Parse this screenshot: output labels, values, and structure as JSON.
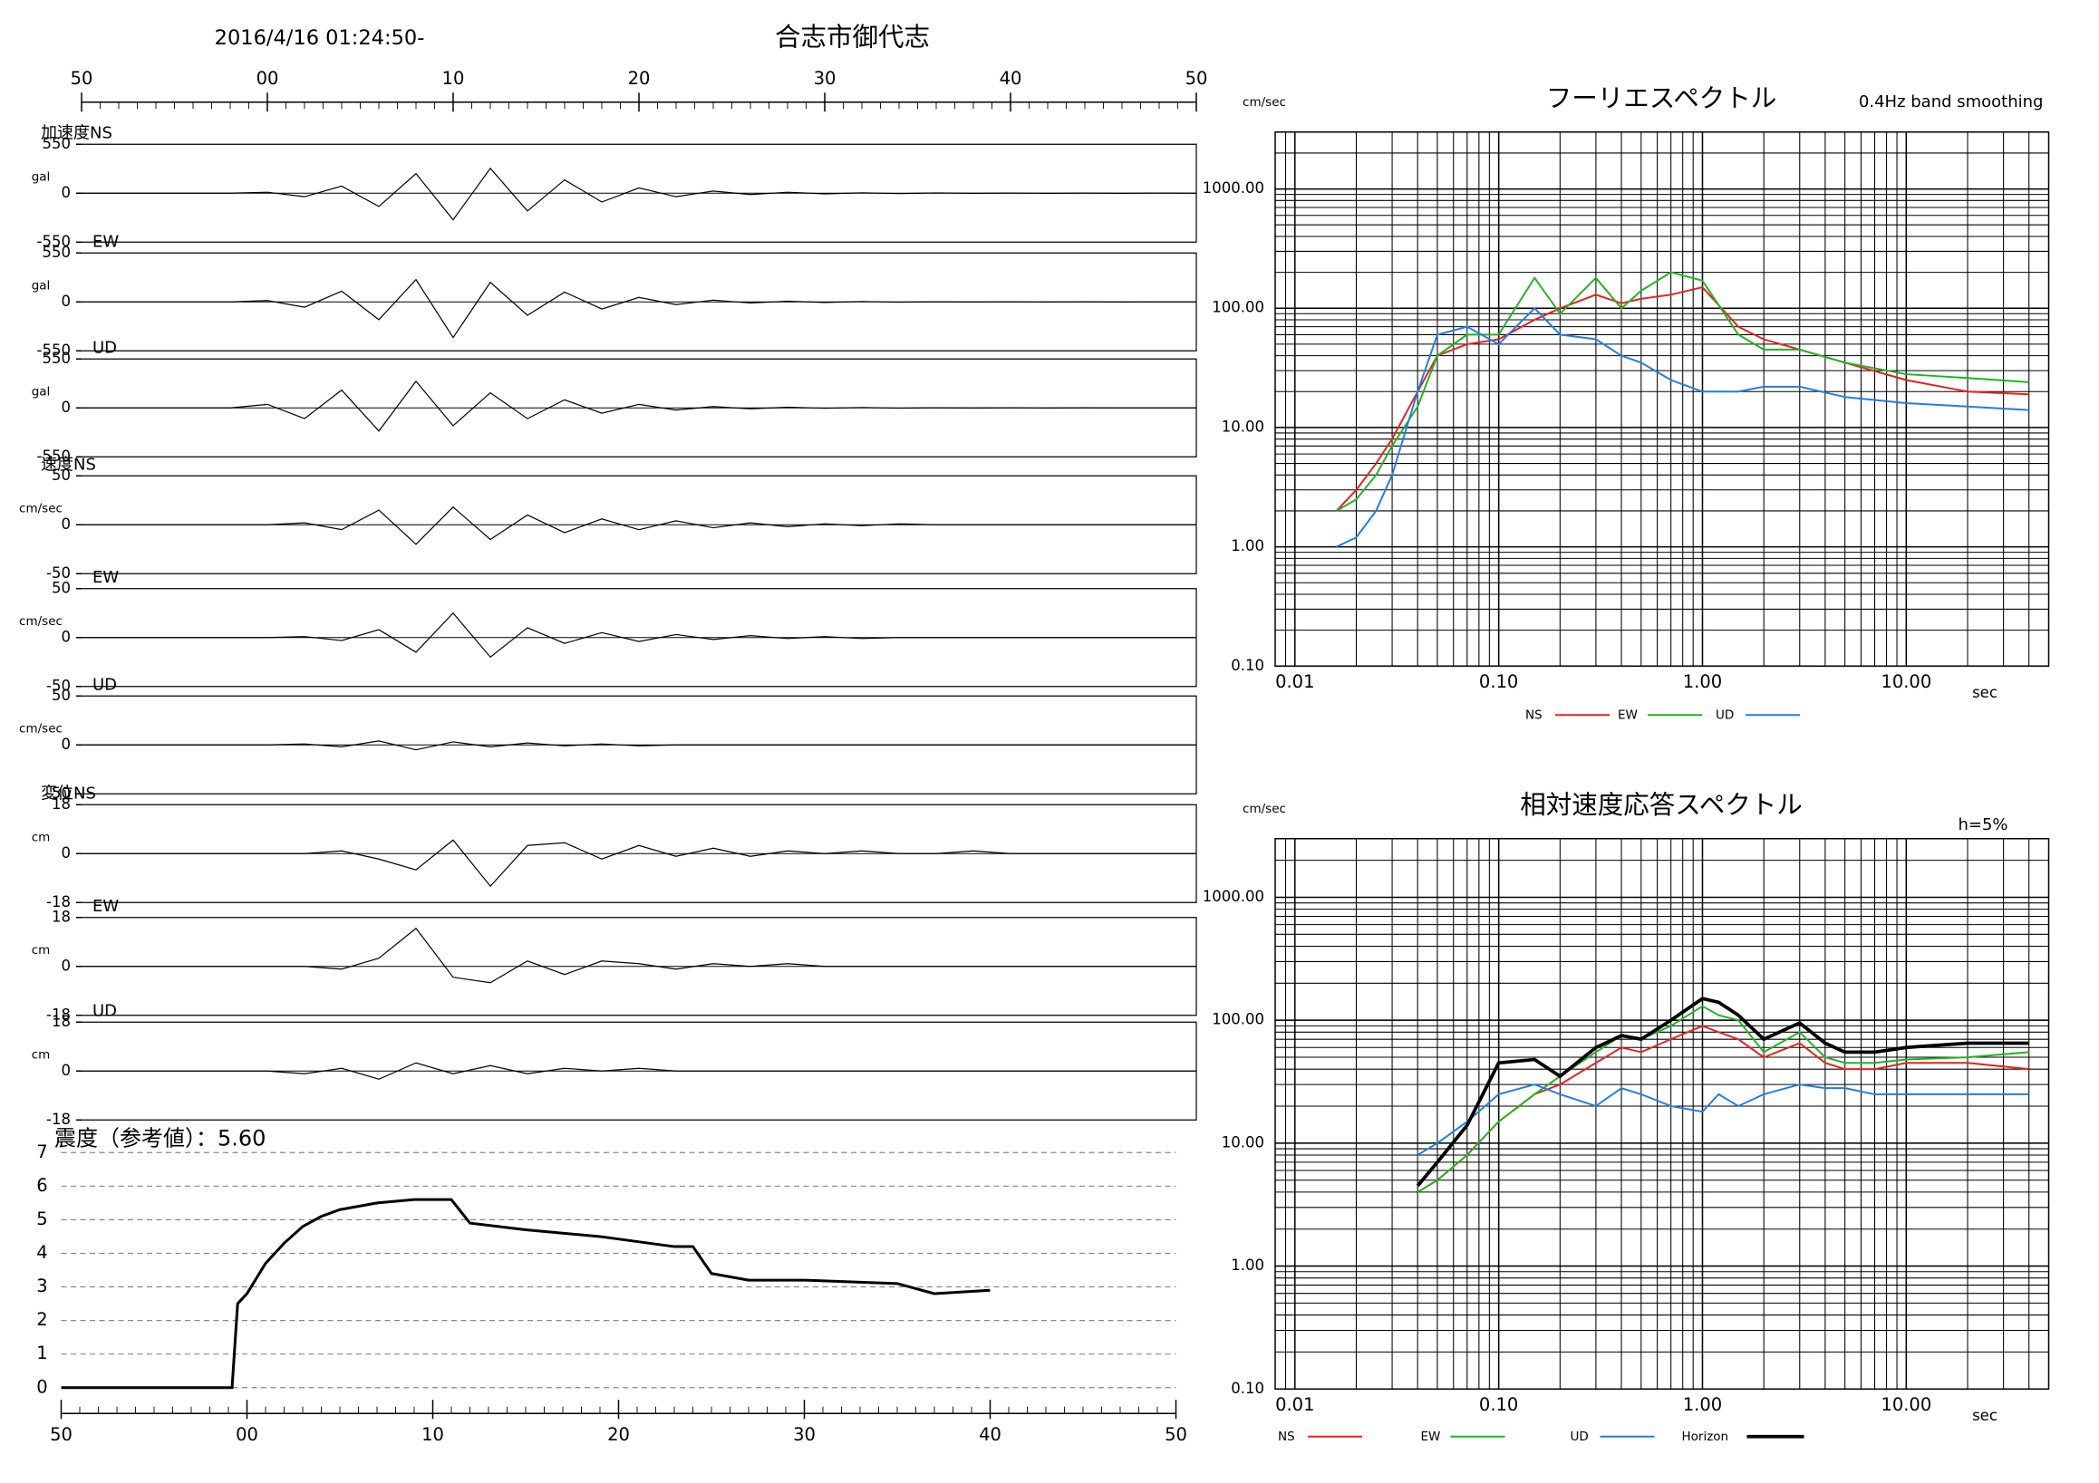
{
  "station": "合志市御代志",
  "start_time": "2016/4/16 01:24:50-",
  "chart_data": [
    {
      "type": "line",
      "label": "加速度NS",
      "unit": "gal",
      "xlim": [
        0,
        60
      ],
      "ylim": [
        -550,
        550
      ],
      "yticks": [
        -550,
        0,
        550
      ],
      "xticks": [
        {
          "value": 0,
          "label": "50"
        },
        {
          "value": 10,
          "label": "00"
        },
        {
          "value": 20,
          "label": "10"
        },
        {
          "value": 30,
          "label": "20"
        },
        {
          "value": 40,
          "label": "30"
        },
        {
          "value": 50,
          "label": "40"
        },
        {
          "value": 60,
          "label": "50"
        }
      ],
      "x": [
        0,
        2,
        4,
        6,
        8,
        10,
        12,
        14,
        16,
        18,
        20,
        22,
        24,
        26,
        28,
        30,
        32,
        34,
        36,
        38,
        40,
        42,
        44,
        46,
        48,
        50,
        52,
        54,
        56,
        58,
        60
      ],
      "values": [
        0,
        0,
        0,
        0,
        0,
        10,
        -40,
        80,
        -150,
        220,
        -300,
        280,
        -200,
        150,
        -100,
        60,
        -40,
        25,
        -15,
        10,
        -8,
        5,
        -4,
        3,
        -2,
        2,
        -1,
        1,
        -1,
        1,
        0
      ]
    },
    {
      "type": "line",
      "label": "EW",
      "unit": "gal",
      "xlim": [
        0,
        60
      ],
      "ylim": [
        -550,
        550
      ],
      "yticks": [
        -550,
        0,
        550
      ],
      "x": [
        0,
        2,
        4,
        6,
        8,
        10,
        12,
        14,
        16,
        18,
        20,
        22,
        24,
        26,
        28,
        30,
        32,
        34,
        36,
        38,
        40,
        42,
        44,
        46,
        48,
        50,
        52,
        54,
        56,
        58,
        60
      ],
      "values": [
        0,
        0,
        0,
        0,
        0,
        15,
        -60,
        120,
        -200,
        250,
        -400,
        220,
        -150,
        110,
        -80,
        50,
        -30,
        20,
        -12,
        8,
        -6,
        4,
        -3,
        2,
        -2,
        1,
        -1,
        1,
        -1,
        0,
        0
      ]
    },
    {
      "type": "line",
      "label": "UD",
      "unit": "gal",
      "xlim": [
        0,
        60
      ],
      "ylim": [
        -550,
        550
      ],
      "yticks": [
        -550,
        0,
        550
      ],
      "x": [
        0,
        2,
        4,
        6,
        8,
        10,
        12,
        14,
        16,
        18,
        20,
        22,
        24,
        26,
        28,
        30,
        32,
        34,
        36,
        38,
        40,
        42,
        44,
        46,
        48,
        50,
        52,
        54,
        56,
        58,
        60
      ],
      "values": [
        0,
        0,
        0,
        0,
        0,
        40,
        -120,
        200,
        -260,
        300,
        -200,
        170,
        -120,
        90,
        -60,
        40,
        -25,
        15,
        -10,
        8,
        -5,
        4,
        -3,
        2,
        -1,
        1,
        -1,
        1,
        0,
        0,
        0
      ]
    },
    {
      "type": "line",
      "label": "速度NS",
      "unit": "cm/sec",
      "xlim": [
        0,
        60
      ],
      "ylim": [
        -50,
        50
      ],
      "yticks": [
        -50,
        0,
        50
      ],
      "x": [
        0,
        2,
        4,
        6,
        8,
        10,
        12,
        14,
        16,
        18,
        20,
        22,
        24,
        26,
        28,
        30,
        32,
        34,
        36,
        38,
        40,
        42,
        44,
        46,
        48,
        50,
        52,
        54,
        56,
        58,
        60
      ],
      "values": [
        0,
        0,
        0,
        0,
        0,
        0,
        2,
        -5,
        15,
        -20,
        18,
        -15,
        10,
        -8,
        6,
        -5,
        4,
        -3,
        2,
        -2,
        1,
        -1,
        1,
        0,
        0,
        0,
        0,
        0,
        0,
        0,
        0
      ]
    },
    {
      "type": "line",
      "label": "EW",
      "unit": "cm/sec",
      "xlim": [
        0,
        60
      ],
      "ylim": [
        -50,
        50
      ],
      "yticks": [
        -50,
        0,
        50
      ],
      "x": [
        0,
        2,
        4,
        6,
        8,
        10,
        12,
        14,
        16,
        18,
        20,
        22,
        24,
        26,
        28,
        30,
        32,
        34,
        36,
        38,
        40,
        42,
        44,
        46,
        48,
        50,
        52,
        54,
        56,
        58,
        60
      ],
      "values": [
        0,
        0,
        0,
        0,
        0,
        0,
        1,
        -3,
        8,
        -15,
        25,
        -20,
        10,
        -6,
        5,
        -4,
        3,
        -2,
        2,
        -1,
        1,
        -1,
        0,
        0,
        0,
        0,
        0,
        0,
        0,
        0,
        0
      ]
    },
    {
      "type": "line",
      "label": "UD",
      "unit": "cm/sec",
      "xlim": [
        0,
        60
      ],
      "ylim": [
        -50,
        50
      ],
      "yticks": [
        -50,
        0,
        50
      ],
      "x": [
        0,
        2,
        4,
        6,
        8,
        10,
        12,
        14,
        16,
        18,
        20,
        22,
        24,
        26,
        28,
        30,
        32,
        34,
        36,
        38,
        40,
        42,
        44,
        46,
        48,
        50,
        52,
        54,
        56,
        58,
        60
      ],
      "values": [
        0,
        0,
        0,
        0,
        0,
        0,
        1,
        -2,
        4,
        -5,
        3,
        -2,
        2,
        -1,
        1,
        -1,
        0,
        0,
        0,
        0,
        0,
        0,
        0,
        0,
        0,
        0,
        0,
        0,
        0,
        0,
        0
      ]
    },
    {
      "type": "line",
      "label": "変位NS",
      "unit": "cm",
      "xlim": [
        0,
        60
      ],
      "ylim": [
        -18,
        18
      ],
      "yticks": [
        -18,
        0,
        18
      ],
      "x": [
        0,
        2,
        4,
        6,
        8,
        10,
        12,
        14,
        16,
        18,
        20,
        22,
        24,
        26,
        28,
        30,
        32,
        34,
        36,
        38,
        40,
        42,
        44,
        46,
        48,
        50,
        52,
        54,
        56,
        58,
        60
      ],
      "values": [
        0,
        0,
        0,
        0,
        0,
        0,
        0,
        1,
        -2,
        -6,
        5,
        -12,
        3,
        4,
        -2,
        3,
        -1,
        2,
        -1,
        1,
        0,
        1,
        0,
        0,
        1,
        0,
        0,
        0,
        0,
        0,
        0
      ]
    },
    {
      "type": "line",
      "label": "EW",
      "unit": "cm",
      "xlim": [
        0,
        60
      ],
      "ylim": [
        -18,
        18
      ],
      "yticks": [
        -18,
        0,
        18
      ],
      "x": [
        0,
        2,
        4,
        6,
        8,
        10,
        12,
        14,
        16,
        18,
        20,
        22,
        24,
        26,
        28,
        30,
        32,
        34,
        36,
        38,
        40,
        42,
        44,
        46,
        48,
        50,
        52,
        54,
        56,
        58,
        60
      ],
      "values": [
        0,
        0,
        0,
        0,
        0,
        0,
        0,
        -1,
        3,
        14,
        -4,
        -6,
        2,
        -3,
        2,
        1,
        -1,
        1,
        0,
        1,
        0,
        0,
        0,
        0,
        0,
        0,
        0,
        0,
        0,
        0,
        0
      ]
    },
    {
      "type": "line",
      "label": "UD",
      "unit": "cm",
      "xlim": [
        0,
        60
      ],
      "ylim": [
        -18,
        18
      ],
      "yticks": [
        -18,
        0,
        18
      ],
      "x": [
        0,
        2,
        4,
        6,
        8,
        10,
        12,
        14,
        16,
        18,
        20,
        22,
        24,
        26,
        28,
        30,
        32,
        34,
        36,
        38,
        40,
        42,
        44,
        46,
        48,
        50,
        52,
        54,
        56,
        58,
        60
      ],
      "values": [
        0,
        0,
        0,
        0,
        0,
        0,
        -1,
        1,
        -3,
        3,
        -1,
        2,
        -1,
        1,
        0,
        1,
        0,
        0,
        0,
        0,
        0,
        0,
        0,
        0,
        0,
        0,
        0,
        0,
        0,
        0,
        0
      ]
    },
    {
      "type": "line",
      "title": "震度（参考値）：5.60",
      "xlim": [
        0,
        60
      ],
      "ylim": [
        0,
        7
      ],
      "yticks": [
        0,
        1,
        2,
        3,
        4,
        5,
        6,
        7
      ],
      "grid": true,
      "xticks": [
        {
          "value": 0,
          "label": "50"
        },
        {
          "value": 10,
          "label": "00"
        },
        {
          "value": 20,
          "label": "10"
        },
        {
          "value": 30,
          "label": "20"
        },
        {
          "value": 40,
          "label": "30"
        },
        {
          "value": 50,
          "label": "40"
        },
        {
          "value": 60,
          "label": "50"
        }
      ],
      "x": [
        0,
        9.2,
        9.5,
        10,
        11,
        12,
        13,
        14,
        15,
        17,
        19,
        21,
        22,
        25,
        29,
        33,
        34,
        35,
        37,
        40,
        45,
        47,
        50
      ],
      "values": [
        0,
        0,
        2.5,
        2.8,
        3.7,
        4.3,
        4.8,
        5.1,
        5.3,
        5.5,
        5.6,
        5.6,
        4.9,
        4.7,
        4.5,
        4.2,
        4.2,
        3.4,
        3.2,
        3.2,
        3.1,
        2.8,
        2.9
      ]
    },
    {
      "type": "line",
      "title": "フーリエスペクトル",
      "subtitle": "0.4Hz band smoothing",
      "y_label": "cm/sec",
      "x_label": "sec",
      "log_x": true,
      "log_y": true,
      "grid": true,
      "xlim": [
        0.008,
        50
      ],
      "ylim": [
        0.1,
        3000
      ],
      "xticks": [
        {
          "value": 0.01,
          "label": "0.01"
        },
        {
          "value": 0.1,
          "label": "0.10"
        },
        {
          "value": 1,
          "label": "1.00"
        },
        {
          "value": 10,
          "label": "10.00"
        }
      ],
      "yticks": [
        {
          "value": 0.1,
          "label": "0.10"
        },
        {
          "value": 1,
          "label": "1.00"
        },
        {
          "value": 10,
          "label": "10.00"
        },
        {
          "value": 100,
          "label": "100.00"
        },
        {
          "value": 1000,
          "label": "1000.00"
        }
      ],
      "x": [
        0.016,
        0.02,
        0.025,
        0.03,
        0.04,
        0.05,
        0.07,
        0.1,
        0.15,
        0.2,
        0.3,
        0.4,
        0.5,
        0.7,
        1,
        1.5,
        2,
        3,
        5,
        10,
        20,
        40
      ],
      "series": [
        {
          "name": "NS",
          "color": "#e8201e",
          "values": [
            2,
            3,
            5,
            8,
            20,
            40,
            50,
            55,
            80,
            100,
            130,
            110,
            120,
            130,
            150,
            70,
            55,
            45,
            35,
            25,
            20,
            19
          ]
        },
        {
          "name": "EW",
          "color": "#1fb41f",
          "values": [
            2,
            2.5,
            4,
            7,
            15,
            40,
            60,
            60,
            180,
            90,
            180,
            100,
            140,
            200,
            170,
            60,
            45,
            45,
            35,
            28,
            26,
            24
          ]
        },
        {
          "name": "UD",
          "color": "#1e7ee8",
          "values": [
            1,
            1.2,
            2,
            4,
            20,
            60,
            70,
            50,
            100,
            60,
            55,
            40,
            35,
            25,
            20,
            20,
            22,
            22,
            18,
            16,
            15,
            14
          ]
        }
      ]
    },
    {
      "type": "line",
      "title": "相対速度応答スペクトル",
      "annotation": "h=5%",
      "y_label": "cm/sec",
      "x_label": "sec",
      "log_x": true,
      "log_y": true,
      "grid": true,
      "xlim": [
        0.008,
        50
      ],
      "ylim": [
        0.1,
        3000
      ],
      "xticks": [
        {
          "value": 0.01,
          "label": "0.01"
        },
        {
          "value": 0.1,
          "label": "0.10"
        },
        {
          "value": 1,
          "label": "1.00"
        },
        {
          "value": 10,
          "label": "10.00"
        }
      ],
      "yticks": [
        {
          "value": 0.1,
          "label": "0.10"
        },
        {
          "value": 1,
          "label": "1.00"
        },
        {
          "value": 10,
          "label": "10.00"
        },
        {
          "value": 100,
          "label": "100.00"
        },
        {
          "value": 1000,
          "label": "1000.00"
        }
      ],
      "x": [
        0.04,
        0.05,
        0.07,
        0.1,
        0.15,
        0.2,
        0.3,
        0.4,
        0.5,
        0.7,
        1,
        1.2,
        1.5,
        2,
        3,
        4,
        5,
        7,
        10,
        20,
        40
      ],
      "series": [
        {
          "name": "NS",
          "color": "#e8201e",
          "values": [
            4,
            5,
            8,
            15,
            25,
            30,
            45,
            60,
            55,
            70,
            90,
            80,
            70,
            50,
            65,
            45,
            40,
            40,
            45,
            45,
            40
          ]
        },
        {
          "name": "EW",
          "color": "#1fb41f",
          "values": [
            4,
            5,
            8,
            15,
            25,
            35,
            55,
            75,
            70,
            90,
            130,
            110,
            100,
            55,
            80,
            50,
            45,
            45,
            48,
            50,
            55
          ]
        },
        {
          "name": "UD",
          "color": "#1e7ee8",
          "values": [
            8,
            10,
            15,
            25,
            30,
            25,
            20,
            28,
            25,
            20,
            18,
            25,
            20,
            25,
            30,
            28,
            28,
            25,
            25,
            25,
            25
          ]
        },
        {
          "name": "Horizon",
          "color": "#000000",
          "values": [
            4.5,
            7,
            14,
            45,
            48,
            35,
            60,
            75,
            70,
            100,
            150,
            140,
            110,
            70,
            95,
            65,
            55,
            55,
            60,
            65,
            65
          ]
        }
      ]
    }
  ]
}
